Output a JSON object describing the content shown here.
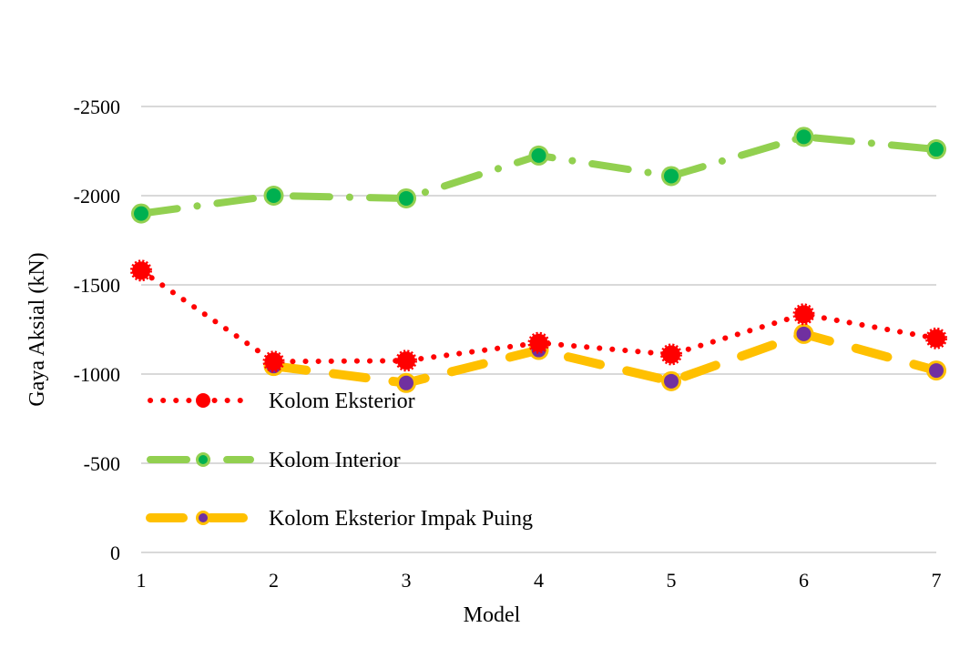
{
  "chart_data": {
    "type": "line",
    "title": "",
    "xlabel": "Model",
    "ylabel": "Gaya Aksial (kN)",
    "x": [
      1,
      2,
      3,
      4,
      5,
      6,
      7
    ],
    "x_tick_labels": [
      "1",
      "2",
      "3",
      "4",
      "5",
      "6",
      "7"
    ],
    "ylim": [
      0,
      -2500
    ],
    "y_ticks": [
      0,
      -500,
      -1000,
      -1500,
      -2000,
      -2500
    ],
    "y_tick_labels": [
      "0",
      "-500",
      "-1000",
      "-1500",
      "-2000",
      "-2500"
    ],
    "grid": true,
    "legend_position": "left-inside-lower",
    "series": [
      {
        "name": "Kolom Eksterior",
        "values": [
          -1580,
          -1070,
          -1075,
          -1175,
          -1110,
          -1335,
          -1200
        ],
        "line_color": "#ff0000",
        "marker_color": "#ff0000",
        "line_style": "dotted"
      },
      {
        "name": "Kolom Interior",
        "values": [
          -1900,
          -2000,
          -1985,
          -2225,
          -2110,
          -2330,
          -2260
        ],
        "line_color": "#92d050",
        "marker_color": "#00b050",
        "line_style": "dash-dot"
      },
      {
        "name": "Kolom Eksterior Impak Puing",
        "values": [
          null,
          -1045,
          -950,
          -1135,
          -960,
          -1225,
          -1020
        ],
        "line_color": "#ffc000",
        "marker_color": "#7030a0",
        "line_style": "dashed"
      }
    ]
  }
}
